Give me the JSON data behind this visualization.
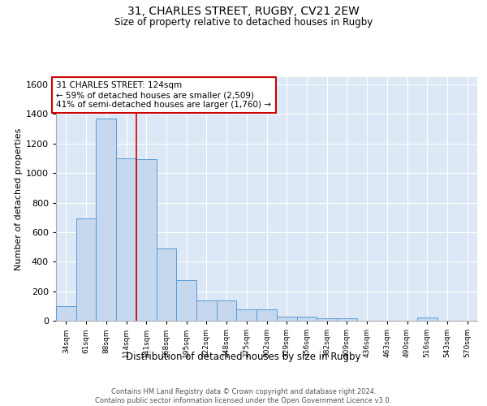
{
  "title": "31, CHARLES STREET, RUGBY, CV21 2EW",
  "subtitle": "Size of property relative to detached houses in Rugby",
  "xlabel": "Distribution of detached houses by size in Rugby",
  "ylabel": "Number of detached properties",
  "categories": [
    "34sqm",
    "61sqm",
    "88sqm",
    "114sqm",
    "141sqm",
    "168sqm",
    "195sqm",
    "222sqm",
    "248sqm",
    "275sqm",
    "302sqm",
    "329sqm",
    "356sqm",
    "382sqm",
    "409sqm",
    "436sqm",
    "463sqm",
    "490sqm",
    "516sqm",
    "543sqm",
    "570sqm"
  ],
  "values": [
    100,
    695,
    1370,
    1100,
    1095,
    490,
    275,
    140,
    140,
    75,
    75,
    30,
    30,
    15,
    15,
    0,
    0,
    0,
    20,
    0,
    0
  ],
  "bar_color": "#c5d8ee",
  "bar_edge_color": "#5b9bd5",
  "vline_x": 3.5,
  "vline_color": "#cc0000",
  "annotation_title": "31 CHARLES STREET: 124sqm",
  "annotation_line1": "← 59% of detached houses are smaller (2,509)",
  "annotation_line2": "41% of semi-detached houses are larger (1,760) →",
  "annotation_box_color": "white",
  "annotation_box_edge": "#cc0000",
  "ylim": [
    0,
    1650
  ],
  "yticks": [
    0,
    200,
    400,
    600,
    800,
    1000,
    1200,
    1400,
    1600
  ],
  "background_color": "#dce8f5",
  "footer": "Contains HM Land Registry data © Crown copyright and database right 2024.\nContains public sector information licensed under the Open Government Licence v3.0."
}
